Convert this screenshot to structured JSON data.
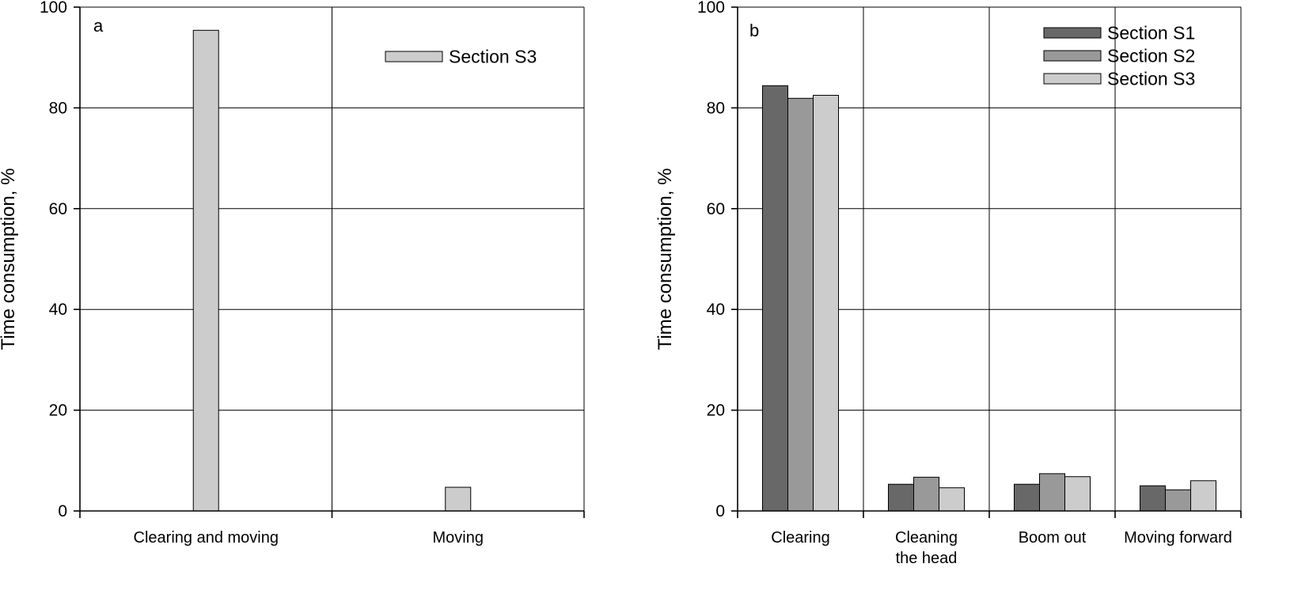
{
  "figure": {
    "colors": {
      "Section S1": "#686868",
      "Section S2": "#999999",
      "Section S3": "#cccccc"
    }
  },
  "chart_data": [
    {
      "type": "bar",
      "panel": "a",
      "categories": [
        [
          "Clearing and moving"
        ],
        [
          "Moving"
        ]
      ],
      "series": [
        {
          "name": "Section S3",
          "values": [
            95.4,
            4.7
          ]
        }
      ],
      "ylabel": "Time consumption, %",
      "ylim": [
        0,
        100
      ],
      "yticks": [
        "0",
        "20",
        "40",
        "60",
        "80",
        "100"
      ],
      "grid": true,
      "legend": "top-right"
    },
    {
      "type": "bar",
      "panel": "b",
      "categories": [
        [
          "Clearing"
        ],
        [
          "Cleaning",
          "the head"
        ],
        [
          "Boom out"
        ],
        [
          "Moving forward"
        ]
      ],
      "series": [
        {
          "name": "Section S1",
          "values": [
            84.4,
            5.3,
            5.3,
            5.0
          ]
        },
        {
          "name": "Section S2",
          "values": [
            81.9,
            6.7,
            7.4,
            4.2
          ]
        },
        {
          "name": "Section S3",
          "values": [
            82.5,
            4.6,
            6.8,
            6.0
          ]
        }
      ],
      "ylabel": "Time consumption, %",
      "ylim": [
        0,
        100
      ],
      "yticks": [
        "0",
        "20",
        "40",
        "60",
        "80",
        "100"
      ],
      "grid": true,
      "legend": "top-right"
    }
  ]
}
